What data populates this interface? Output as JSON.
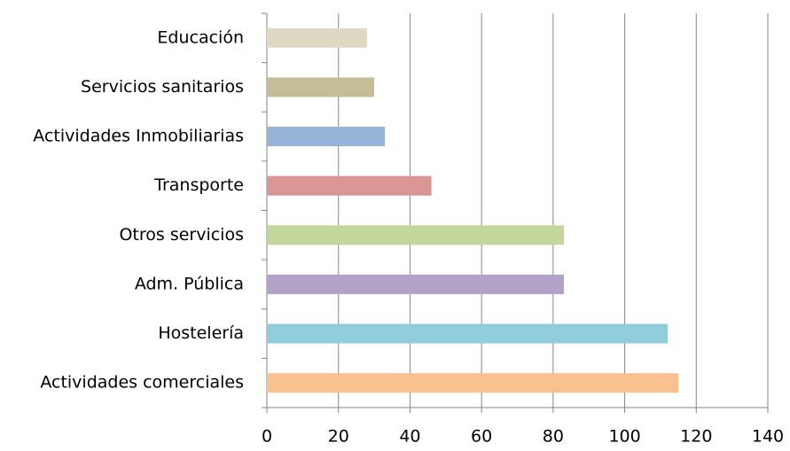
{
  "chart_data": {
    "type": "barh",
    "categories": [
      "Educación",
      "Servicios sanitarios",
      "Actividades Inmobiliarias",
      "Transporte",
      "Otros servicios",
      "Adm. Pública",
      "Hostelería",
      "Actividades comerciales"
    ],
    "values": [
      28,
      30,
      33,
      46,
      83,
      83,
      112,
      115
    ],
    "colors": [
      "#ddd9c3",
      "#c4bd97",
      "#95b3d7",
      "#d99694",
      "#c3d69b",
      "#b2a2c7",
      "#92cddc",
      "#fac090"
    ],
    "xlim": [
      0,
      140
    ],
    "xticks": [
      0,
      20,
      40,
      60,
      80,
      100,
      120,
      140
    ],
    "grid": true
  }
}
